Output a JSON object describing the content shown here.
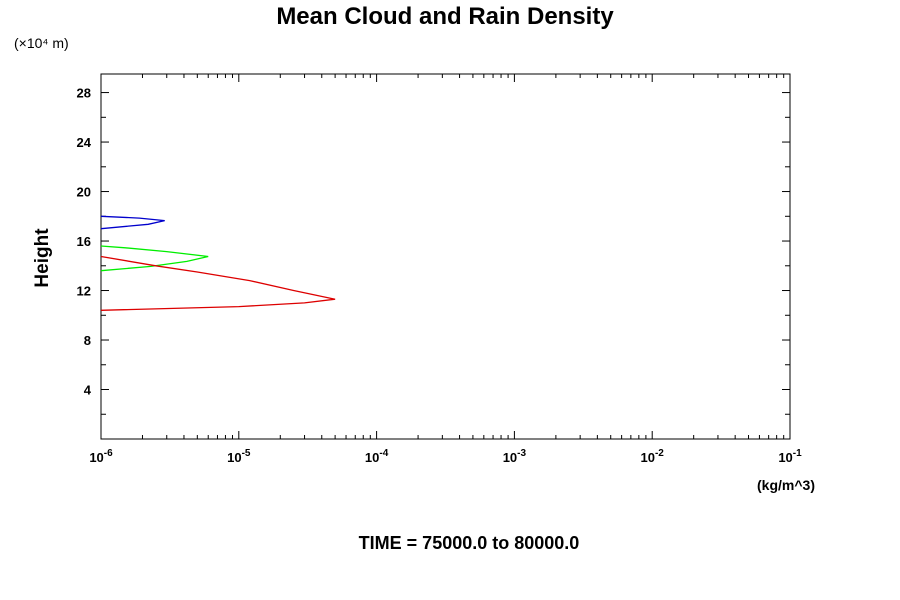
{
  "chart_data": {
    "type": "line",
    "title": "Mean Cloud and Rain Density",
    "ylabel": "Height",
    "y_multiplier_label": "(×10⁴ m)",
    "xlabel_units": "(kg/m^3)",
    "footer": "TIME = 75000.0 to 80000.0",
    "x_scale": "log",
    "xlim": [
      1e-06,
      0.1
    ],
    "ylim": [
      0,
      29.5
    ],
    "x_tick_labels": [
      {
        "base": "10",
        "exp": "-6"
      },
      {
        "base": "10",
        "exp": "-5"
      },
      {
        "base": "10",
        "exp": "-4"
      },
      {
        "base": "10",
        "exp": "-3"
      },
      {
        "base": "10",
        "exp": "-2"
      },
      {
        "base": "10",
        "exp": "-1"
      }
    ],
    "y_ticks": [
      "4",
      "8",
      "12",
      "16",
      "20",
      "24",
      "28"
    ],
    "grid": false,
    "series": [
      {
        "color": "#0000cc",
        "points": [
          [
            1e-06,
            17.0
          ],
          [
            2.2e-06,
            17.35
          ],
          [
            2.9e-06,
            17.65
          ],
          [
            1.9e-06,
            17.85
          ],
          [
            1e-06,
            18.0
          ]
        ]
      },
      {
        "color": "#00ee00",
        "points": [
          [
            1e-06,
            13.6
          ],
          [
            2.3e-06,
            13.95
          ],
          [
            4.2e-06,
            14.35
          ],
          [
            6e-06,
            14.75
          ],
          [
            3e-06,
            15.15
          ],
          [
            1.5e-06,
            15.45
          ],
          [
            1e-06,
            15.6
          ]
        ]
      },
      {
        "color": "#dd0000",
        "points": [
          [
            1e-06,
            10.4
          ],
          [
            1e-05,
            10.7
          ],
          [
            3e-05,
            11.0
          ],
          [
            5e-05,
            11.3
          ],
          [
            2.5e-05,
            12.0
          ],
          [
            1.2e-05,
            12.8
          ],
          [
            5e-06,
            13.5
          ],
          [
            2.5e-06,
            14.0
          ],
          [
            1e-06,
            14.75
          ]
        ]
      }
    ]
  }
}
